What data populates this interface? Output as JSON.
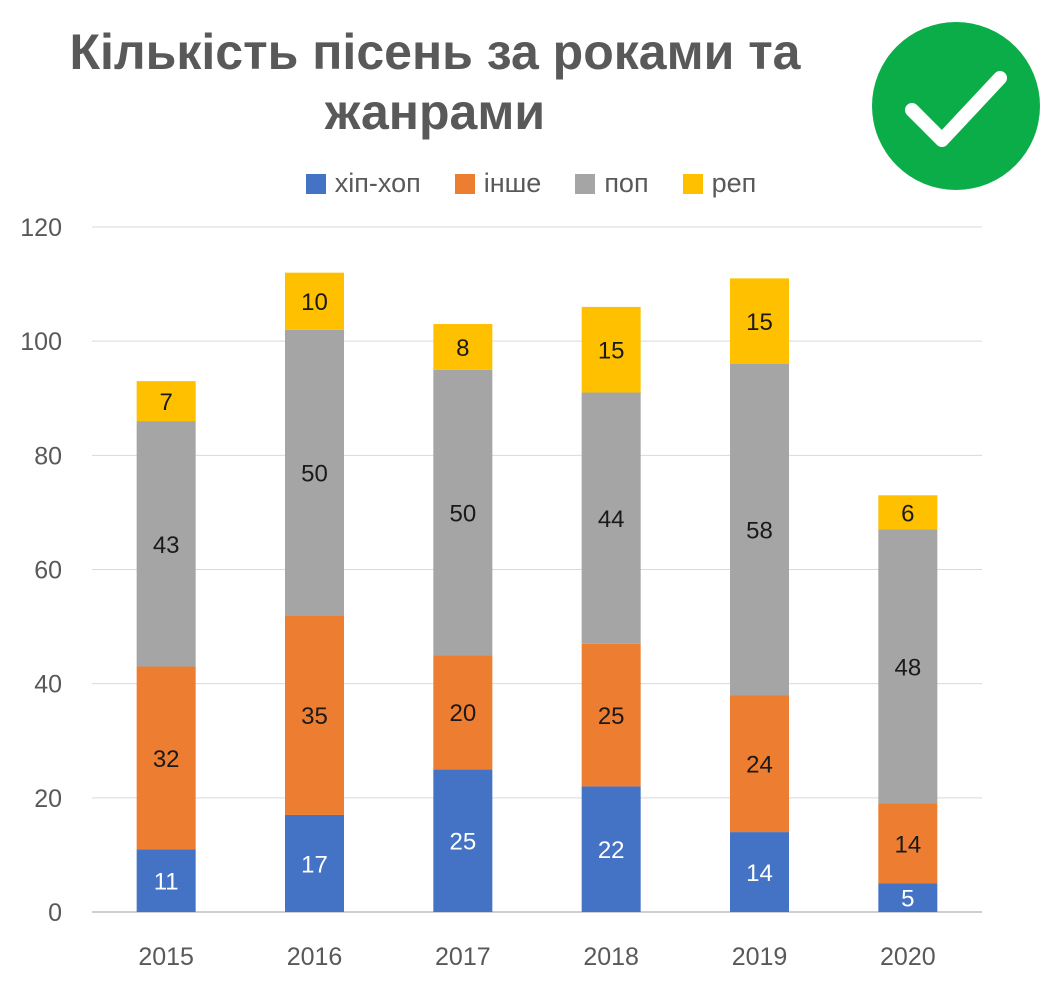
{
  "chart_data": {
    "type": "bar",
    "stacked": true,
    "title": "Кількість пісень за роками та жанрами",
    "categories": [
      "2015",
      "2016",
      "2017",
      "2018",
      "2019",
      "2020"
    ],
    "series": [
      {
        "name": "хіп-хоп",
        "color": "#4472c4",
        "label_color": "#ffffff",
        "values": [
          11,
          17,
          25,
          22,
          14,
          5
        ]
      },
      {
        "name": "інше",
        "color": "#ed7d31",
        "label_color": "#1a1a1a",
        "values": [
          32,
          35,
          20,
          25,
          24,
          14
        ]
      },
      {
        "name": "поп",
        "color": "#a5a5a5",
        "label_color": "#1a1a1a",
        "values": [
          43,
          50,
          50,
          44,
          58,
          48
        ]
      },
      {
        "name": "реп",
        "color": "#ffc000",
        "label_color": "#1a1a1a",
        "values": [
          7,
          10,
          8,
          15,
          15,
          6
        ]
      }
    ],
    "ylim": [
      0,
      120
    ],
    "yticks": [
      0,
      20,
      40,
      60,
      80,
      100,
      120
    ],
    "grid": true,
    "legend_position": "top"
  },
  "badge": {
    "icon": "checkmark-icon",
    "color": "#0aad48"
  }
}
